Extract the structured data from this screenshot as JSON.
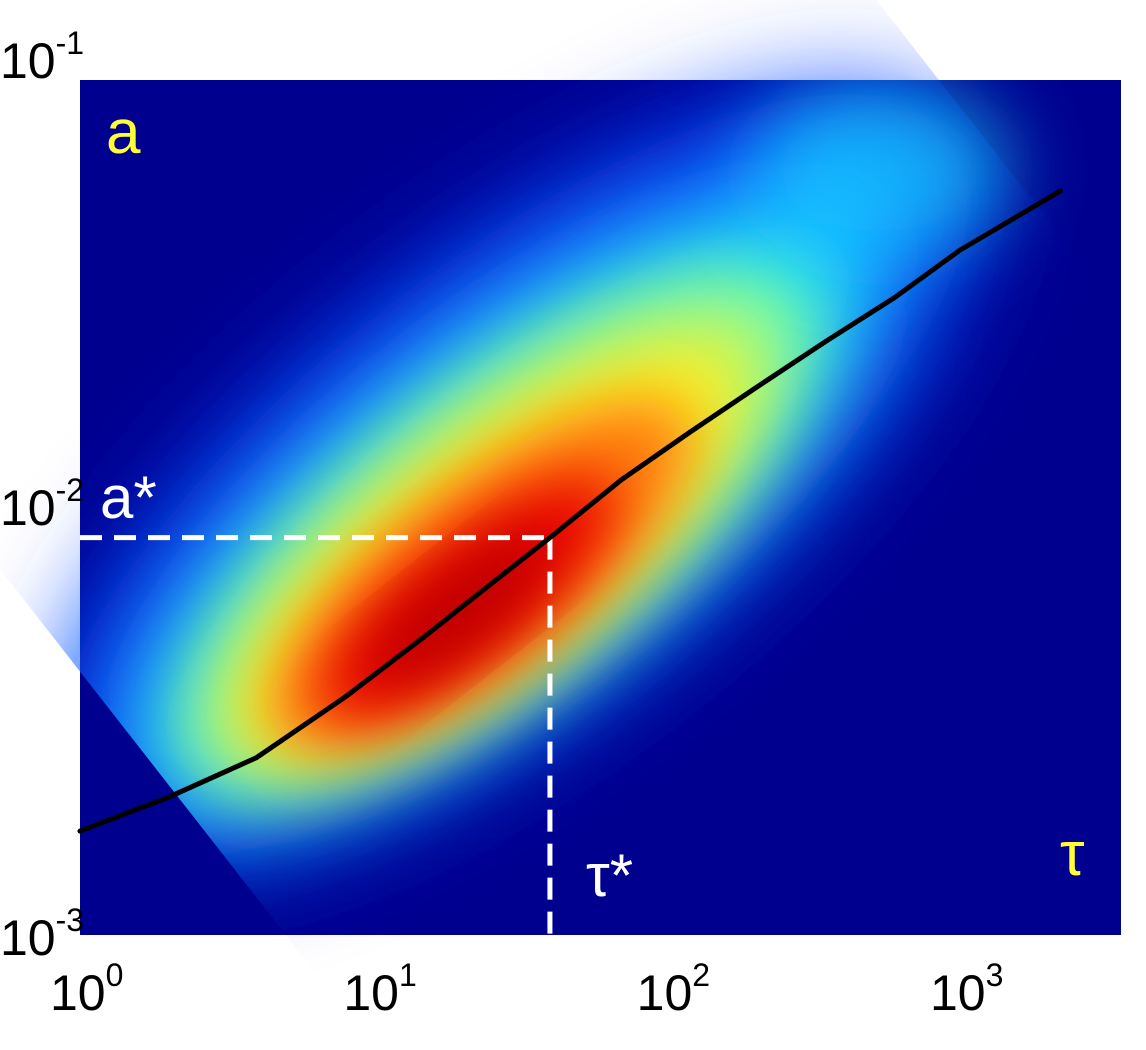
{
  "chart_data": {
    "type": "heatmap",
    "x_scale": "log",
    "y_scale": "log",
    "xlim": [
      1,
      4000
    ],
    "ylim": [
      0.001,
      0.1
    ],
    "x_ticks": [
      {
        "value": 1,
        "base": "10",
        "exp": "0"
      },
      {
        "value": 10,
        "base": "10",
        "exp": "1"
      },
      {
        "value": 100,
        "base": "10",
        "exp": "2"
      },
      {
        "value": 1000,
        "base": "10",
        "exp": "3"
      }
    ],
    "y_ticks": [
      {
        "value": 0.001,
        "base": "10",
        "exp": "-3"
      },
      {
        "value": 0.01,
        "base": "10",
        "exp": "-2"
      },
      {
        "value": 0.1,
        "base": "10",
        "exp": "-1"
      }
    ],
    "colormap": "jet",
    "density_peak": {
      "x": 30,
      "y": 0.0085
    },
    "curve": {
      "color": "#000000",
      "points": [
        {
          "x": 1,
          "y": 0.00175
        },
        {
          "x": 2,
          "y": 0.0021
        },
        {
          "x": 4,
          "y": 0.0026
        },
        {
          "x": 8,
          "y": 0.0036
        },
        {
          "x": 15,
          "y": 0.005
        },
        {
          "x": 25,
          "y": 0.0066
        },
        {
          "x": 40,
          "y": 0.0085
        },
        {
          "x": 70,
          "y": 0.0116
        },
        {
          "x": 120,
          "y": 0.015
        },
        {
          "x": 200,
          "y": 0.019
        },
        {
          "x": 350,
          "y": 0.0245
        },
        {
          "x": 600,
          "y": 0.031
        },
        {
          "x": 1000,
          "y": 0.04
        },
        {
          "x": 2200,
          "y": 0.055
        }
      ]
    },
    "reference_point": {
      "x": 40,
      "y": 0.0085,
      "line_color": "#ffffff",
      "line_style": "dashed"
    },
    "annotations": {
      "panel_label": {
        "text": "a",
        "color": "#ffff33"
      },
      "y_marker": {
        "text": "a*",
        "color": "#ffffff"
      },
      "x_marker": {
        "text": "τ*",
        "color": "#ffffff"
      },
      "axis_label": {
        "text": "τ",
        "color": "#ffff33"
      }
    },
    "grid": false
  }
}
